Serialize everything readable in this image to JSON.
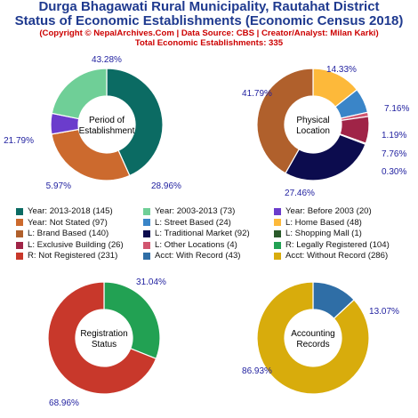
{
  "header": {
    "title_line1": "Durga Bhagawati Rural Municipality, Rautahat District",
    "title_line2": "Status of Economic Establishments (Economic Census 2018)",
    "copyright": "(Copyright © NepalArchives.Com | Data Source: CBS | Creator/Analyst: Milan Karki)",
    "total": "Total Economic Establishments: 335"
  },
  "chart_data": [
    {
      "type": "pie",
      "title": "Period of Establishment",
      "center_label": [
        "Period of",
        "Establishment"
      ],
      "slices": [
        {
          "label": "Year: 2013-2018",
          "value": 145,
          "pct": "43.28%",
          "color": "#0b6b63"
        },
        {
          "label": "Year: Not Stated",
          "value": 97,
          "pct": "28.96%",
          "color": "#cc6a2e"
        },
        {
          "label": "Year: Before 2003",
          "value": 20,
          "pct": "5.97%",
          "color": "#6b3ccc"
        },
        {
          "label": "Year: 2003-2013",
          "value": 73,
          "pct": "21.79%",
          "color": "#6fcf97"
        }
      ]
    },
    {
      "type": "pie",
      "title": "Physical Location",
      "center_label": [
        "Physical",
        "Location"
      ],
      "slices": [
        {
          "label": "L: Home Based",
          "value": 48,
          "pct": "14.33%",
          "color": "#fdb93a"
        },
        {
          "label": "L: Street Based",
          "value": 24,
          "pct": "7.16%",
          "color": "#3a85c8"
        },
        {
          "label": "L: Other Locations",
          "value": 4,
          "pct": "1.19%",
          "color": "#d1556f"
        },
        {
          "label": "L: Exclusive Building",
          "value": 26,
          "pct": "7.76%",
          "color": "#a02447"
        },
        {
          "label": "L: Shopping Mall",
          "value": 1,
          "pct": "0.30%",
          "color": "#2a5a2a"
        },
        {
          "label": "L: Traditional Market",
          "value": 92,
          "pct": "27.46%",
          "color": "#0c0c4e"
        },
        {
          "label": "L: Brand Based",
          "value": 140,
          "pct": "41.79%",
          "color": "#b0602c"
        }
      ]
    },
    {
      "type": "pie",
      "title": "Registration Status",
      "center_label": [
        "Registration",
        "Status"
      ],
      "slices": [
        {
          "label": "R: Legally Registered",
          "value": 104,
          "pct": "31.04%",
          "color": "#22a153"
        },
        {
          "label": "R: Not Registered",
          "value": 231,
          "pct": "68.96%",
          "color": "#c8382b"
        }
      ]
    },
    {
      "type": "pie",
      "title": "Accounting Records",
      "center_label": [
        "Accounting",
        "Records"
      ],
      "slices": [
        {
          "label": "Acct: With Record",
          "value": 43,
          "pct": "13.07%",
          "color": "#2f6ea6"
        },
        {
          "label": "Acct: Without Record",
          "value": 286,
          "pct": "86.93%",
          "color": "#d8ac0c"
        }
      ]
    }
  ],
  "legend": [
    {
      "text": "Year: 2013-2018 (145)",
      "color": "#0b6b63"
    },
    {
      "text": "Year: 2003-2013 (73)",
      "color": "#6fcf97"
    },
    {
      "text": "Year: Before 2003 (20)",
      "color": "#6b3ccc"
    },
    {
      "text": "Year: Not Stated (97)",
      "color": "#cc6a2e"
    },
    {
      "text": "L: Street Based (24)",
      "color": "#3a85c8"
    },
    {
      "text": "L: Home Based (48)",
      "color": "#fdb93a"
    },
    {
      "text": "L: Brand Based (140)",
      "color": "#b0602c"
    },
    {
      "text": "L: Traditional Market (92)",
      "color": "#0c0c4e"
    },
    {
      "text": "L: Shopping Mall (1)",
      "color": "#2a5a2a"
    },
    {
      "text": "L: Exclusive Building (26)",
      "color": "#a02447"
    },
    {
      "text": "L: Other Locations (4)",
      "color": "#d1556f"
    },
    {
      "text": "R: Legally Registered (104)",
      "color": "#22a153"
    },
    {
      "text": "R: Not Registered (231)",
      "color": "#c8382b"
    },
    {
      "text": "Acct: With Record (43)",
      "color": "#2f6ea6"
    },
    {
      "text": "Acct: Without Record (286)",
      "color": "#d8ac0c"
    }
  ]
}
